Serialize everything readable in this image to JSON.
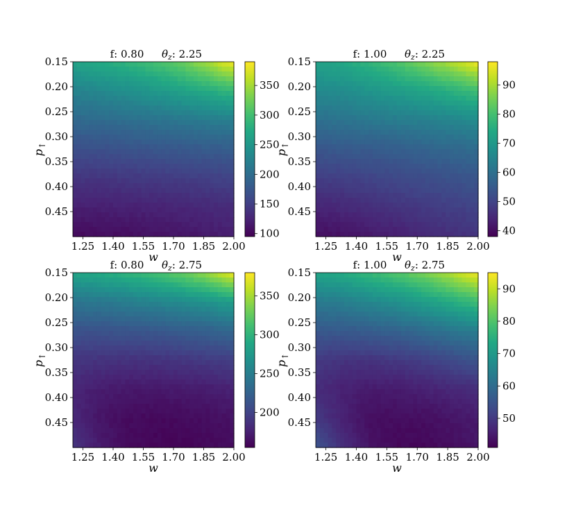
{
  "chart_data": [
    {
      "type": "heatmap",
      "title_parts": [
        "f: 0.80",
        "θ",
        "z",
        ": 2.25"
      ],
      "xlabel": "w",
      "ylabel": [
        "p",
        "↑"
      ],
      "xticks": [
        1.25,
        1.4,
        1.55,
        1.7,
        1.85,
        2.0
      ],
      "yticks": [
        0.15,
        0.2,
        0.25,
        0.3,
        0.35,
        0.4,
        0.45
      ],
      "xlim": [
        1.2,
        2.0
      ],
      "ylim": [
        0.15,
        0.5
      ],
      "colorbar": {
        "min": 95,
        "max": 390,
        "ticks": [
          100,
          150,
          200,
          250,
          300,
          350
        ]
      },
      "grid_values": [
        [
          265,
          275,
          285,
          300,
          320,
          350,
          385
        ],
        [
          225,
          232,
          240,
          250,
          262,
          275,
          290
        ],
        [
          195,
          198,
          202,
          207,
          212,
          217,
          222
        ],
        [
          165,
          167,
          170,
          173,
          176,
          179,
          182
        ],
        [
          140,
          141,
          143,
          145,
          147,
          150,
          153
        ],
        [
          120,
          121,
          122,
          124,
          126,
          129,
          132
        ],
        [
          102,
          104,
          106,
          109,
          112,
          116,
          120
        ]
      ],
      "colormap": "viridis"
    },
    {
      "type": "heatmap",
      "title_parts": [
        "f: 1.00",
        "θ",
        "z",
        ": 2.25"
      ],
      "xlabel": "w",
      "ylabel": [
        "p",
        "↑"
      ],
      "xticks": [
        1.25,
        1.4,
        1.55,
        1.7,
        1.85,
        2.0
      ],
      "yticks": [
        0.15,
        0.2,
        0.25,
        0.3,
        0.35,
        0.4,
        0.45
      ],
      "xlim": [
        1.2,
        2.0
      ],
      "ylim": [
        0.15,
        0.5
      ],
      "colorbar": {
        "min": 38,
        "max": 98,
        "ticks": [
          40,
          50,
          60,
          70,
          80,
          90
        ]
      },
      "grid_values": [
        [
          72,
          74,
          77,
          81,
          86,
          91,
          97
        ],
        [
          66,
          67,
          69,
          71,
          73,
          76,
          79
        ],
        [
          60,
          61,
          62,
          63,
          64,
          65,
          67
        ],
        [
          54,
          55,
          55,
          56,
          57,
          58,
          59
        ],
        [
          49,
          49,
          50,
          51,
          52,
          53,
          54
        ],
        [
          44,
          45,
          46,
          47,
          48,
          49,
          50
        ],
        [
          40,
          41,
          42,
          43,
          45,
          46,
          47
        ]
      ],
      "colormap": "viridis"
    },
    {
      "type": "heatmap",
      "title_parts": [
        "f: 0.80",
        "θ",
        "z",
        ": 2.75"
      ],
      "xlabel": "w",
      "ylabel": [
        "p",
        "↑"
      ],
      "xticks": [
        1.25,
        1.4,
        1.55,
        1.7,
        1.85,
        2.0
      ],
      "yticks": [
        0.15,
        0.2,
        0.25,
        0.3,
        0.35,
        0.4,
        0.45
      ],
      "xlim": [
        1.2,
        2.0
      ],
      "ylim": [
        0.15,
        0.5
      ],
      "colorbar": {
        "min": 155,
        "max": 380,
        "ticks": [
          200,
          250,
          300,
          350
        ]
      },
      "grid_values": [
        [
          285,
          292,
          300,
          310,
          325,
          345,
          375
        ],
        [
          242,
          245,
          250,
          256,
          262,
          270,
          280
        ],
        [
          212,
          212,
          214,
          216,
          220,
          224,
          230
        ],
        [
          190,
          188,
          187,
          188,
          190,
          193,
          197
        ],
        [
          178,
          173,
          170,
          170,
          171,
          173,
          176
        ],
        [
          180,
          168,
          162,
          160,
          161,
          163,
          166
        ],
        [
          188,
          172,
          162,
          158,
          158,
          160,
          163
        ]
      ],
      "colormap": "viridis"
    },
    {
      "type": "heatmap",
      "title_parts": [
        "f: 1.00",
        "θ",
        "z",
        ": 2.75"
      ],
      "xlabel": "w",
      "ylabel": [
        "p",
        "↑"
      ],
      "xticks": [
        1.25,
        1.4,
        1.55,
        1.7,
        1.85,
        2.0
      ],
      "yticks": [
        0.15,
        0.2,
        0.25,
        0.3,
        0.35,
        0.4,
        0.45
      ],
      "xlim": [
        1.2,
        2.0
      ],
      "ylim": [
        0.15,
        0.5
      ],
      "colorbar": {
        "min": 41,
        "max": 95,
        "ticks": [
          50,
          60,
          70,
          80,
          90
        ]
      },
      "grid_values": [
        [
          72,
          74,
          77,
          80,
          84,
          89,
          94
        ],
        [
          63,
          64,
          66,
          68,
          71,
          74,
          78
        ],
        [
          56,
          56,
          57,
          58,
          60,
          62,
          64
        ],
        [
          50,
          49,
          49,
          50,
          51,
          53,
          55
        ],
        [
          48,
          46,
          45,
          45,
          46,
          47,
          48
        ],
        [
          50,
          46,
          43,
          43,
          43,
          44,
          45
        ],
        [
          55,
          48,
          44,
          42,
          42,
          43,
          44
        ]
      ],
      "colormap": "viridis"
    }
  ]
}
